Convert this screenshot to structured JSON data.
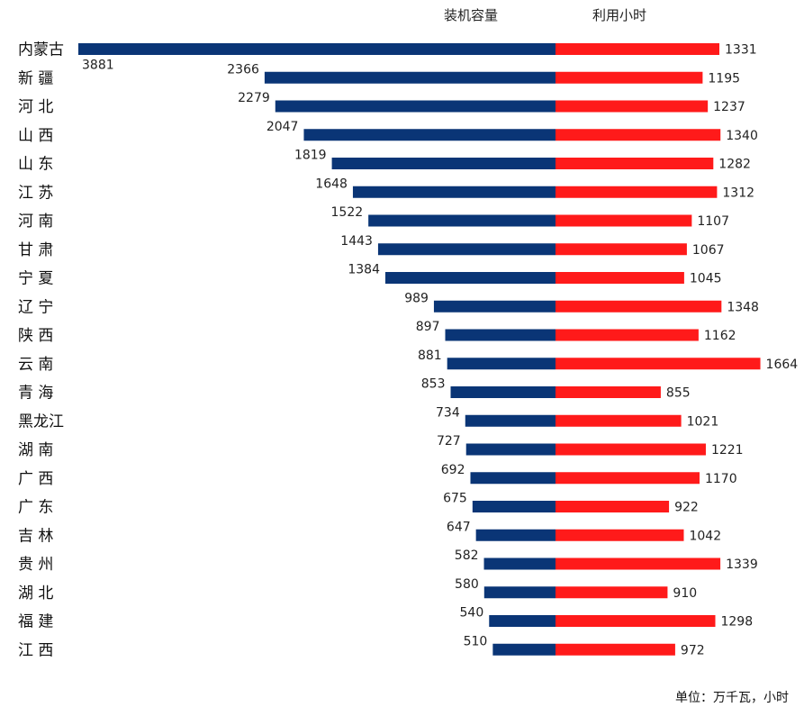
{
  "chart_data": {
    "type": "bar",
    "layout": "butterfly",
    "series": [
      {
        "name": "装机容量",
        "color": "#0a3576",
        "values": [
          3881,
          2366,
          2279,
          2047,
          1819,
          1648,
          1522,
          1443,
          1384,
          989,
          897,
          881,
          853,
          734,
          727,
          692,
          675,
          647,
          582,
          580,
          540,
          510
        ]
      },
      {
        "name": "利用小时",
        "color": "#ff1a1a",
        "values": [
          1331,
          1195,
          1237,
          1340,
          1282,
          1312,
          1107,
          1067,
          1045,
          1348,
          1162,
          1664,
          855,
          1021,
          1221,
          1170,
          922,
          1042,
          1339,
          910,
          1298,
          972
        ]
      }
    ],
    "categories": [
      "内蒙古",
      "新 疆",
      "河 北",
      "山 西",
      "山 东",
      "江 苏",
      "河 南",
      "甘 肃",
      "宁 夏",
      "辽 宁",
      "陕 西",
      "云 南",
      "青 海",
      "黑龙江",
      "湖 南",
      "广 西",
      "广 东",
      "吉 林",
      "贵 州",
      "湖 北",
      "福 建",
      "江 西"
    ],
    "unit_note": "单位：万千瓦，小时",
    "grid": false,
    "legend": "top-center"
  }
}
